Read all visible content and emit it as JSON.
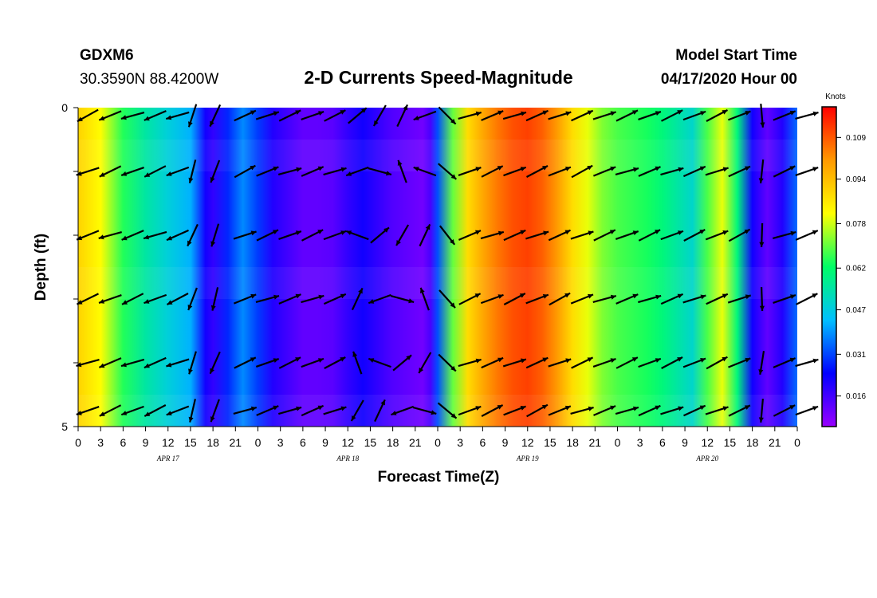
{
  "header": {
    "station": "GDXM6",
    "location": "30.3590N 88.4200W",
    "title": "2-D Currents Speed-Magnitude",
    "start_label": "Model Start Time",
    "start_value": "04/17/2020 Hour 00"
  },
  "chart_data": {
    "type": "heatmap",
    "title": "2-D Currents Speed-Magnitude",
    "xlabel": "Forecast Time(Z)",
    "ylabel": "Depth (ft)",
    "x_tick_labels": [
      "0",
      "3",
      "6",
      "9",
      "12",
      "15",
      "18",
      "21",
      "0",
      "3",
      "6",
      "9",
      "12",
      "15",
      "18",
      "21",
      "0",
      "3",
      "6",
      "9",
      "12",
      "15",
      "18",
      "21",
      "0",
      "3",
      "6",
      "9",
      "12",
      "15",
      "18",
      "21",
      "0"
    ],
    "x_range_hours": [
      0,
      96
    ],
    "date_labels": [
      {
        "label": "APR 17",
        "hour": 12
      },
      {
        "label": "APR 18",
        "hour": 36
      },
      {
        "label": "APR 19",
        "hour": 60
      },
      {
        "label": "APR 20",
        "hour": 84
      }
    ],
    "y_tick_labels": [
      {
        "label": "0",
        "depth": 0
      },
      {
        "label": "",
        "depth": 1
      },
      {
        "label": "",
        "depth": 2
      },
      {
        "label": "",
        "depth": 3
      },
      {
        "label": "",
        "depth": 4
      },
      {
        "label": "5",
        "depth": 5
      }
    ],
    "y_range_ft": [
      0,
      5
    ],
    "colorbar": {
      "unit": "Knots",
      "range": [
        0.005,
        0.12
      ],
      "ticks": [
        0.016,
        0.031,
        0.047,
        0.062,
        0.078,
        0.094,
        0.109
      ],
      "colormap": [
        "#9900ff",
        "#0000ff",
        "#00bfff",
        "#00ff66",
        "#ffff00",
        "#ff9900",
        "#ff0000"
      ]
    },
    "speed_profile_hours": [
      0,
      3,
      6,
      9,
      12,
      15,
      17,
      18,
      20,
      22,
      24,
      26,
      28,
      30,
      32,
      34,
      36,
      38,
      40,
      42,
      44,
      46,
      47,
      48,
      50,
      52,
      54,
      56,
      58,
      60,
      62,
      64,
      66,
      68,
      70,
      72,
      74,
      76,
      78,
      80,
      82,
      84,
      86,
      88,
      90,
      92,
      94,
      96
    ],
    "speed_profile_knots": [
      0.09,
      0.082,
      0.065,
      0.055,
      0.048,
      0.042,
      0.022,
      0.018,
      0.028,
      0.038,
      0.03,
      0.02,
      0.016,
      0.012,
      0.012,
      0.013,
      0.018,
      0.022,
      0.018,
      0.014,
      0.012,
      0.01,
      0.015,
      0.032,
      0.07,
      0.088,
      0.098,
      0.105,
      0.11,
      0.112,
      0.108,
      0.1,
      0.088,
      0.08,
      0.072,
      0.068,
      0.066,
      0.064,
      0.06,
      0.055,
      0.05,
      0.068,
      0.08,
      0.06,
      0.022,
      0.012,
      0.02,
      0.035
    ],
    "vector_hours": [
      0,
      3,
      6,
      9,
      12,
      14,
      17,
      21,
      24,
      27,
      30,
      33,
      36,
      39,
      42,
      45,
      48,
      51,
      54,
      57,
      60,
      63,
      66,
      69,
      72,
      75,
      78,
      81,
      84,
      87,
      90,
      93,
      96
    ],
    "vector_depths_ft": [
      0.05,
      1.0,
      2.0,
      3.0,
      4.0,
      4.9
    ],
    "vector_pattern": [
      {
        "hour_from": 0,
        "hour_to": 14,
        "direction": "southwest"
      },
      {
        "hour_from": 14,
        "hour_to": 18,
        "direction": "south-southwest"
      },
      {
        "hour_from": 21,
        "hour_to": 34,
        "direction": "east-northeast"
      },
      {
        "hour_from": 34,
        "hour_to": 46,
        "direction": "variable"
      },
      {
        "hour_from": 47,
        "hour_to": 50,
        "direction": "southeast"
      },
      {
        "hour_from": 51,
        "hour_to": 90,
        "direction": "east-northeast"
      },
      {
        "hour_from": 90,
        "hour_to": 93,
        "direction": "south"
      },
      {
        "hour_from": 93,
        "hour_to": 96,
        "direction": "east-northeast"
      }
    ]
  }
}
